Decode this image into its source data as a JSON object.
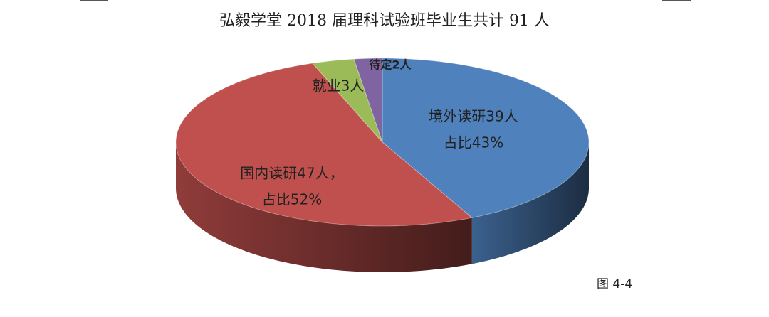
{
  "chart_data": {
    "type": "pie3d",
    "title": "弘毅学堂 2018 届理科试验班毕业生共计 91 人",
    "values": [
      39,
      47,
      3,
      2
    ],
    "value_labels": [
      [
        "境外读研39人",
        "占比43%"
      ],
      [
        "国内读研47人，",
        "占比52%"
      ],
      [
        "就业3人"
      ],
      [
        "待定2人"
      ]
    ],
    "colors": [
      "#4f81bd",
      "#c0504d",
      "#9bbb59",
      "#8064a2"
    ]
  },
  "caption": "图 4-4"
}
